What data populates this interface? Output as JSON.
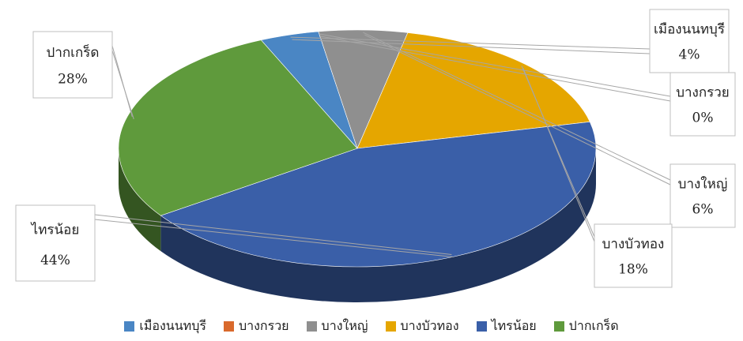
{
  "chart_data": {
    "type": "pie",
    "style": "3d",
    "title": "",
    "categories": [
      "เมืองนนทบุรี",
      "บางกรวย",
      "บางใหญ่",
      "บางบัวทอง",
      "ไทรน้อย",
      "ปากเกร็ด"
    ],
    "values": [
      4,
      0,
      6,
      18,
      44,
      28
    ],
    "value_labels": [
      "4%",
      "0%",
      "6%",
      "18%",
      "44%",
      "28%"
    ],
    "colors": [
      "#4a86c4",
      "#d9692c",
      "#8f8f8f",
      "#e5a600",
      "#3a5fa8",
      "#5f9a3c"
    ],
    "legend_position": "bottom"
  }
}
